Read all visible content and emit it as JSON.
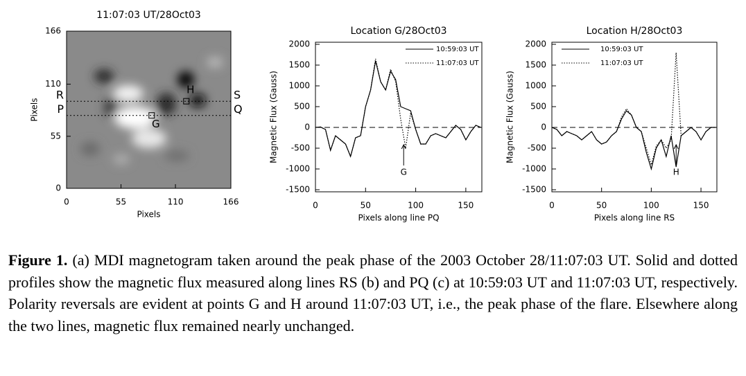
{
  "chart_data": [
    {
      "type": "image",
      "title": "11:07:03 UT/28Oct03",
      "xlabel": "Pixels",
      "ylabel": "Pixels",
      "xlim": [
        0,
        166
      ],
      "ylim": [
        0,
        166
      ],
      "xticks": [
        0,
        55,
        110,
        166
      ],
      "yticks": [
        0,
        55,
        110,
        166
      ],
      "lines": [
        {
          "start": "R",
          "end": "S",
          "y": 92
        },
        {
          "start": "P",
          "end": "Q",
          "y": 77
        }
      ],
      "points": [
        {
          "label": "G",
          "x": 86,
          "y": 77
        },
        {
          "label": "H",
          "x": 121,
          "y": 92
        }
      ]
    },
    {
      "type": "line",
      "title": "Location G/28Oct03",
      "xlabel": "Pixels along line PQ",
      "ylabel": "Magnetic Flux (Gauss)",
      "x": [
        0,
        5,
        10,
        15,
        20,
        25,
        30,
        35,
        40,
        45,
        50,
        55,
        60,
        65,
        70,
        75,
        80,
        85,
        90,
        95,
        100,
        105,
        110,
        115,
        120,
        125,
        130,
        135,
        140,
        145,
        150,
        155,
        160,
        165
      ],
      "series": [
        {
          "name": "10:59:03 UT",
          "style": "solid",
          "color": "#000000",
          "values": [
            0,
            10,
            -50,
            -550,
            -200,
            -300,
            -400,
            -700,
            -250,
            -200,
            500,
            900,
            1600,
            1100,
            900,
            1350,
            1150,
            500,
            450,
            400,
            -50,
            -400,
            -400,
            -200,
            -150,
            -200,
            -250,
            -100,
            50,
            -50,
            -300,
            -100,
            50,
            0
          ]
        },
        {
          "name": "11:07:03 UT",
          "style": "dotted",
          "color": "#000000",
          "values": [
            0,
            10,
            -50,
            -550,
            -200,
            -300,
            -400,
            -700,
            -250,
            -200,
            500,
            900,
            1650,
            1100,
            900,
            1400,
            1100,
            200,
            -500,
            350,
            -50,
            -400,
            -400,
            -200,
            -150,
            -200,
            -250,
            -100,
            50,
            -50,
            -300,
            -100,
            50,
            0
          ]
        }
      ],
      "xlim": [
        0,
        166
      ],
      "ylim": [
        -1550,
        2050
      ],
      "xticks": [
        0,
        50,
        100,
        150
      ],
      "yticks": [
        -1500,
        -1000,
        -500,
        0,
        500,
        1000,
        1500,
        2000
      ],
      "legend": "upper right",
      "annotation": {
        "text": "G",
        "x": 88
      }
    },
    {
      "type": "line",
      "title": "Location H/28Oct03",
      "xlabel": "Pixels along line RS",
      "ylabel": "Magnetic Flux (Gauss)",
      "x": [
        0,
        5,
        10,
        15,
        20,
        25,
        30,
        35,
        40,
        45,
        50,
        55,
        60,
        65,
        70,
        75,
        80,
        85,
        90,
        95,
        100,
        105,
        110,
        115,
        120,
        125,
        130,
        135,
        140,
        145,
        150,
        155,
        160,
        165
      ],
      "series": [
        {
          "name": "10:59:03 UT",
          "style": "solid",
          "color": "#000000",
          "values": [
            0,
            -50,
            -200,
            -100,
            -150,
            -200,
            -300,
            -200,
            -100,
            -300,
            -400,
            -350,
            -200,
            -100,
            200,
            400,
            300,
            0,
            -100,
            -600,
            -1000,
            -500,
            -300,
            -700,
            -200,
            -950,
            -200,
            -100,
            0,
            -100,
            -300,
            -100,
            0,
            0
          ]
        },
        {
          "name": "11:07:03 UT",
          "style": "dotted",
          "color": "#000000",
          "values": [
            0,
            -50,
            -200,
            -100,
            -150,
            -200,
            -300,
            -200,
            -100,
            -300,
            -400,
            -350,
            -200,
            -100,
            250,
            450,
            300,
            0,
            -100,
            -500,
            -900,
            -450,
            -300,
            -500,
            -300,
            1800,
            -200,
            -100,
            0,
            -100,
            -300,
            -100,
            0,
            0
          ]
        }
      ],
      "xlim": [
        0,
        166
      ],
      "ylim": [
        -1550,
        2050
      ],
      "xticks": [
        0,
        50,
        100,
        150
      ],
      "yticks": [
        -1500,
        -1000,
        -500,
        0,
        500,
        1000,
        1500,
        2000
      ],
      "legend": "upper left",
      "annotation": {
        "text": "H",
        "x": 125
      }
    }
  ],
  "caption": {
    "label": "Figure 1.",
    "text": "(a) MDI magnetogram taken around the peak phase of the 2003 October 28/11:07:03 UT. Solid and dotted profiles show the magnetic flux measured along lines RS (b) and PQ (c) at 10:59:03 UT and 11:07:03 UT, respectively. Polarity reversals are evident at points G and H around 11:07:03 UT, i.e., the peak phase of the flare. Elsewhere along the two lines, magnetic flux remained nearly unchanged."
  }
}
